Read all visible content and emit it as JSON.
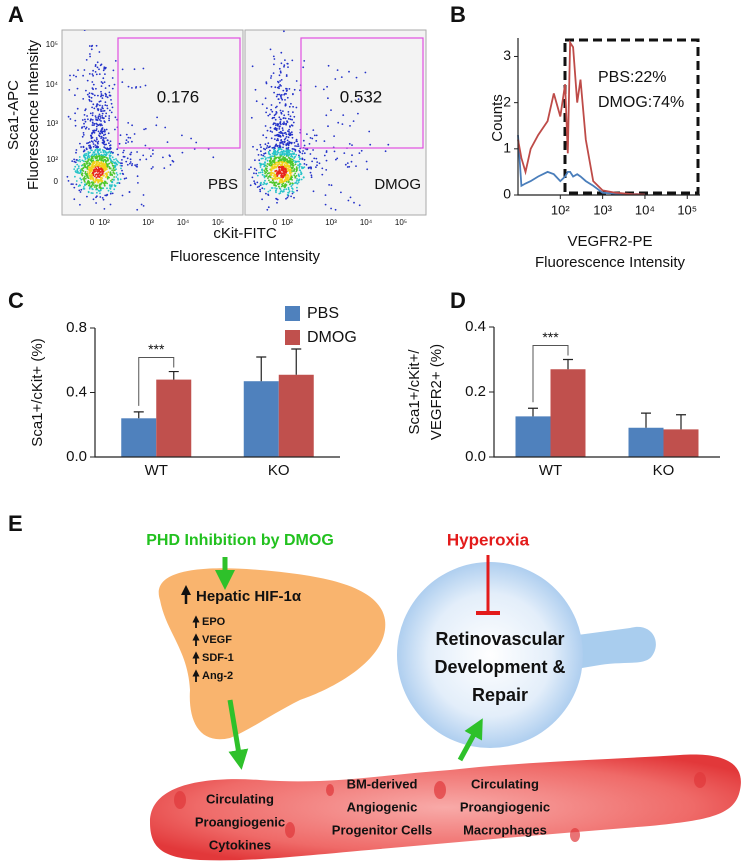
{
  "panel_labels": [
    "A",
    "B",
    "C",
    "D",
    "E"
  ],
  "panel_a": {
    "y_label": [
      "Sca1-APC",
      "Fluorescence Intensity"
    ],
    "x_label": [
      "cKit-FITC",
      "Fluorescence Intensity"
    ],
    "y_ticks": [
      "10⁵",
      "10⁴",
      "10³",
      "10²",
      "0"
    ],
    "x_ticks": [
      "0",
      "10²",
      "10³",
      "10⁴",
      "10⁵"
    ],
    "plots": [
      {
        "gate_value": "0.176",
        "label": "PBS"
      },
      {
        "gate_value": "0.532",
        "label": "DMOG"
      }
    ]
  },
  "chart_data": [
    {
      "type": "line",
      "y_label": "Counts",
      "x_label": [
        "VEGFR2-PE",
        "Fluorescence Intensity"
      ],
      "x": [
        10,
        12,
        15,
        20,
        30,
        50,
        70,
        100,
        130,
        150,
        170,
        200,
        250,
        300,
        400,
        600,
        1000,
        2000,
        5000,
        10000
      ],
      "xlog": true,
      "xlim": [
        10,
        200000
      ],
      "xticks": [
        {
          "value": 100,
          "label": "10²"
        },
        {
          "value": 1000,
          "label": "10³"
        },
        {
          "value": 10000,
          "label": "10⁴"
        },
        {
          "value": 100000,
          "label": "10⁵"
        }
      ],
      "ylim": [
        0,
        3.4
      ],
      "yticks": [
        0,
        1,
        2,
        3
      ],
      "series": [
        {
          "name": "PBS:22%",
          "color": "#4a7ebb",
          "values": [
            1.3,
            0.2,
            0.25,
            0.3,
            0.4,
            0.5,
            0.45,
            0.3,
            0.4,
            0.5,
            0.5,
            0.4,
            0.45,
            0.4,
            0.3,
            0.2,
            0.05,
            0.03,
            0.02,
            0.01
          ]
        },
        {
          "name": "DMOG:74%",
          "color": "#be4b48",
          "values": [
            1.2,
            0.8,
            0.5,
            1.0,
            1.3,
            1.6,
            2.2,
            1.7,
            2.4,
            0.9,
            3.3,
            3.2,
            2.0,
            2.5,
            1.2,
            0.3,
            0.1,
            0.05,
            0.02,
            0.01
          ]
        }
      ]
    },
    {
      "type": "bar",
      "y_label": [
        "Sca1+/cKit+ (%)"
      ],
      "categories": [
        "WT",
        "KO"
      ],
      "ylim": [
        0,
        0.8
      ],
      "yticks": [
        {
          "value": 0,
          "label": "0.0"
        },
        0.4,
        0.8
      ],
      "legend": true,
      "annotation": "***",
      "series": [
        {
          "name": "PBS",
          "color": "#4f81bd",
          "values": [
            0.24,
            0.47
          ],
          "errors": [
            0.04,
            0.15
          ]
        },
        {
          "name": "DMOG",
          "color": "#c0504d",
          "values": [
            0.48,
            0.51
          ],
          "errors": [
            0.05,
            0.16
          ]
        }
      ]
    },
    {
      "type": "bar",
      "y_label": [
        "Sca1+/cKit+/",
        "VEGFR2+ (%)"
      ],
      "categories": [
        "WT",
        "KO"
      ],
      "ylim": [
        0,
        0.4
      ],
      "yticks": [
        {
          "value": 0,
          "label": "0.0"
        },
        0.2,
        0.4
      ],
      "legend": false,
      "annotation": "***",
      "series": [
        {
          "color": "#4f81bd",
          "values": [
            0.125,
            0.09
          ],
          "errors": [
            0.025,
            0.045
          ]
        },
        {
          "color": "#c0504d",
          "values": [
            0.27,
            0.085
          ],
          "errors": [
            0.03,
            0.045
          ]
        }
      ]
    }
  ],
  "panel_e": {
    "stimulus": "PHD Inhibition by DMOG",
    "inhibitor": "Hyperoxia",
    "liver_title": "Hepatic HIF-1α",
    "liver_items": [
      "EPO",
      "VEGF",
      "SDF-1",
      "Ang-2"
    ],
    "eye_text": [
      "Retinovascular",
      "Development &",
      "Repair"
    ],
    "vessel_groups": [
      [
        "Circulating",
        "Proangiogenic",
        "Cytokines"
      ],
      [
        "BM-derived",
        "Angiogenic",
        "Progenitor Cells"
      ],
      [
        "Circulating",
        "Proangiogenic",
        "Macrophages"
      ]
    ]
  }
}
